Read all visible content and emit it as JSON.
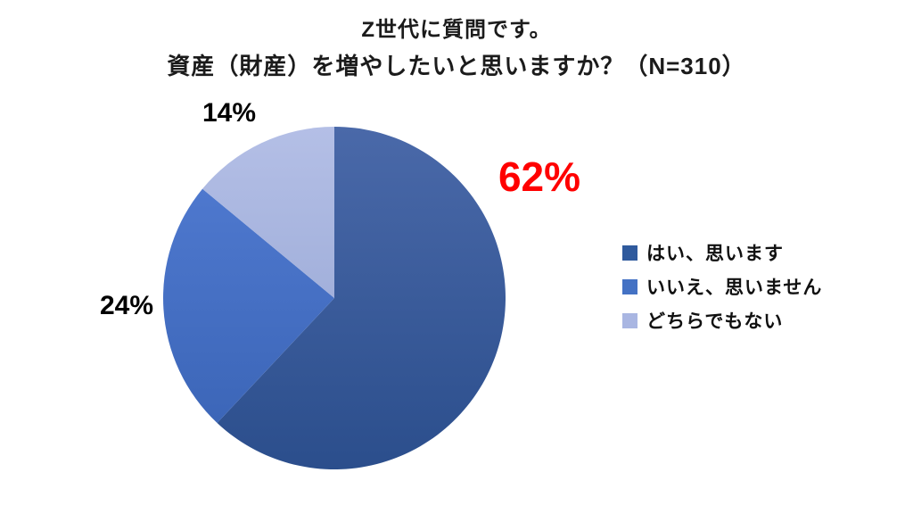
{
  "chart_data": {
    "type": "pie",
    "title": "Z世代に質問です。",
    "subtitle": "資産（財産）を増やしたいと思いますか？（N=310）",
    "sample_size_label": "N=310",
    "start_angle_deg": 0,
    "direction": "clockwise",
    "legend_position": "right",
    "background_color": "#FFFFFF",
    "slices": [
      {
        "label": "はい、思います",
        "value_pct": 62,
        "data_label": "62%",
        "data_label_color": "#FF0000",
        "data_label_emphasized": true,
        "color_top": "#4A69A9",
        "color_bottom": "#2B4E8C",
        "legend_color": "#2F5A9D"
      },
      {
        "label": "いいえ、思いません",
        "value_pct": 24,
        "data_label": "24%",
        "data_label_color": "#000000",
        "data_label_emphasized": false,
        "color_top": "#4E78CE",
        "color_bottom": "#3C66B8",
        "legend_color": "#4472C4"
      },
      {
        "label": "どちらでもない",
        "value_pct": 14,
        "data_label": "14%",
        "data_label_color": "#000000",
        "data_label_emphasized": false,
        "color_top": "#B4BFE6",
        "color_bottom": "#A2B0DB",
        "legend_color": "#A9B6E2"
      }
    ]
  }
}
